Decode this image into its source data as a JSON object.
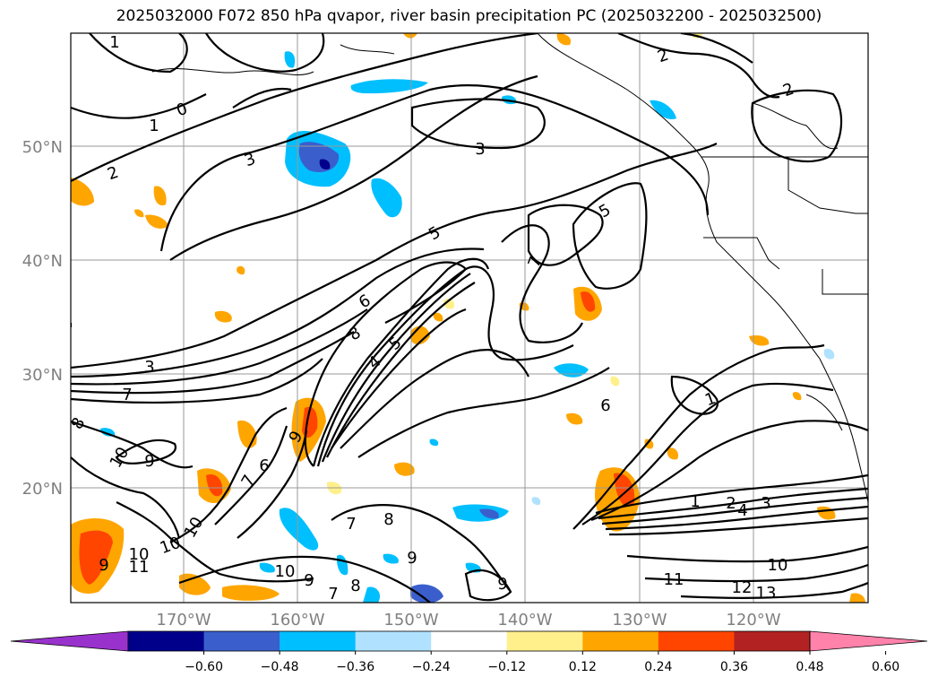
{
  "title": "2025032000 F072 850 hPa qvapor, river basin precipitation PC (2025032200 - 2025032500)",
  "lat_labels": [
    "50°N",
    "40°N",
    "30°N",
    "20°N"
  ],
  "lon_labels": [
    "170°W",
    "160°W",
    "150°W",
    "140°W",
    "130°W",
    "120°W"
  ],
  "colorbar": {
    "colors": [
      "#9932cc",
      "#00008b",
      "#3a5fcd",
      "#00bfff",
      "#b0e2ff",
      "#ffffff",
      "#fff08c",
      "#ffa500",
      "#ff4500",
      "#b22222",
      "#ff82ab"
    ],
    "ticks": [
      "−0.60",
      "−0.48",
      "−0.36",
      "−0.24",
      "−0.12",
      "0.12",
      "0.24",
      "0.36",
      "0.48",
      "0.60"
    ]
  },
  "contour_labels": [
    {
      "text": "1"
    },
    {
      "text": "0"
    },
    {
      "text": "1"
    },
    {
      "text": "2"
    },
    {
      "text": "3"
    },
    {
      "text": "3"
    },
    {
      "text": "2"
    },
    {
      "text": "2"
    },
    {
      "text": "5"
    },
    {
      "text": "5"
    },
    {
      "text": "7"
    },
    {
      "text": "6"
    },
    {
      "text": "8"
    },
    {
      "text": "5"
    },
    {
      "text": "4"
    },
    {
      "text": "3"
    },
    {
      "text": "7"
    },
    {
      "text": "8"
    },
    {
      "text": "10"
    },
    {
      "text": "9"
    },
    {
      "text": "6"
    },
    {
      "text": "7"
    },
    {
      "text": "9"
    },
    {
      "text": "10"
    },
    {
      "text": "10"
    },
    {
      "text": "11"
    },
    {
      "text": "9"
    },
    {
      "text": "10"
    },
    {
      "text": "9"
    },
    {
      "text": "8"
    },
    {
      "text": "7"
    },
    {
      "text": "8"
    },
    {
      "text": "10"
    },
    {
      "text": "9"
    },
    {
      "text": "1"
    },
    {
      "text": "6"
    },
    {
      "text": "1"
    },
    {
      "text": "2"
    },
    {
      "text": "4"
    },
    {
      "text": "3"
    },
    {
      "text": "11"
    },
    {
      "text": "10"
    },
    {
      "text": "12"
    },
    {
      "text": "13"
    },
    {
      "text": "7"
    },
    {
      "text": "9"
    }
  ]
}
